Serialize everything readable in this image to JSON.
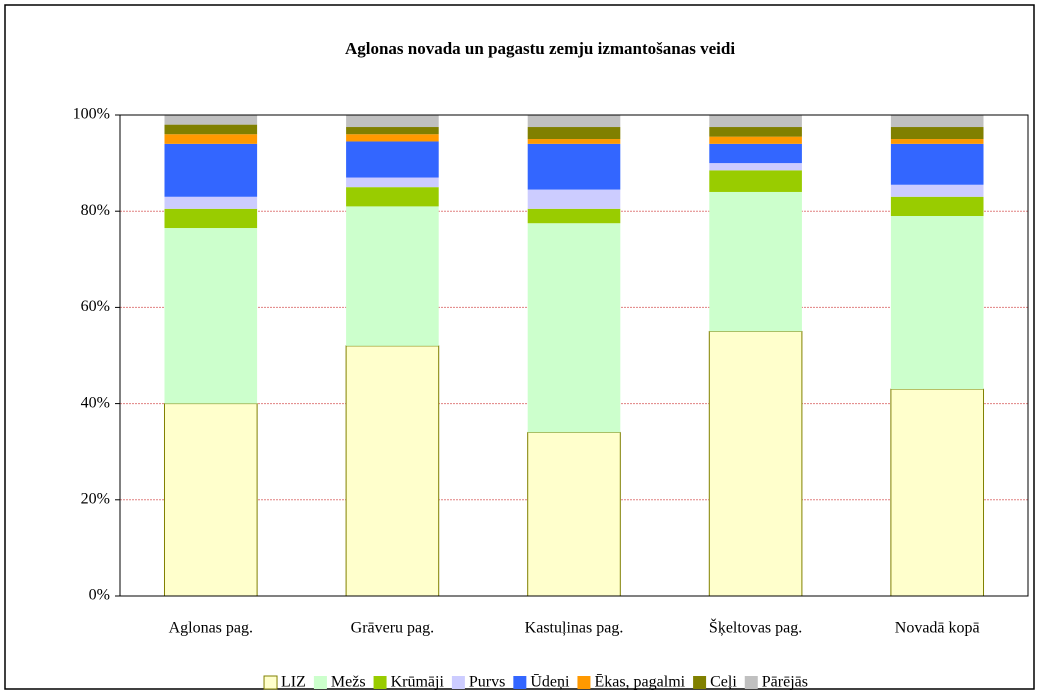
{
  "chart_data": {
    "type": "stacked_bar_100",
    "title": "Aglonas novada un pagastu zemju izmantošanas veidi",
    "categories": [
      "Aglonas pag.",
      "Grāveru pag.",
      "Kastuļinas pag.",
      "Šķeltovas pag.",
      "Novadā kopā"
    ],
    "series": [
      {
        "name": "LIZ",
        "color": "#ffffcc",
        "values": [
          40,
          52,
          34,
          55,
          43
        ]
      },
      {
        "name": "Mežs",
        "color": "#ccffcc",
        "values": [
          36.5,
          29,
          43.5,
          29,
          36
        ]
      },
      {
        "name": "Krūmāji",
        "color": "#99cc00",
        "values": [
          4,
          4,
          3,
          4.5,
          4
        ]
      },
      {
        "name": "Purvs",
        "color": "#ccccff",
        "values": [
          2.5,
          2,
          4,
          1.5,
          2.5
        ]
      },
      {
        "name": "Ūdeņi",
        "color": "#3366ff",
        "values": [
          11,
          7.5,
          9.5,
          4,
          8.5
        ]
      },
      {
        "name": "Ēkas, pagalmi",
        "color": "#ff9900",
        "values": [
          2,
          1.5,
          1,
          1.5,
          1
        ]
      },
      {
        "name": "Ceļi",
        "color": "#808000",
        "values": [
          2,
          1.5,
          2.5,
          2,
          2.5
        ]
      },
      {
        "name": "Pārējās",
        "color": "#c0c0c0",
        "values": [
          2,
          2.5,
          2.5,
          2.5,
          2.5
        ]
      }
    ],
    "ylim": [
      0,
      100
    ],
    "yticks": [
      {
        "value": 0,
        "label": "0%"
      },
      {
        "value": 20,
        "label": "20%"
      },
      {
        "value": 40,
        "label": "40%"
      },
      {
        "value": 60,
        "label": "60%"
      },
      {
        "value": 80,
        "label": "80%"
      },
      {
        "value": 100,
        "label": "100%"
      }
    ],
    "grid": true,
    "legend": "bottom"
  }
}
